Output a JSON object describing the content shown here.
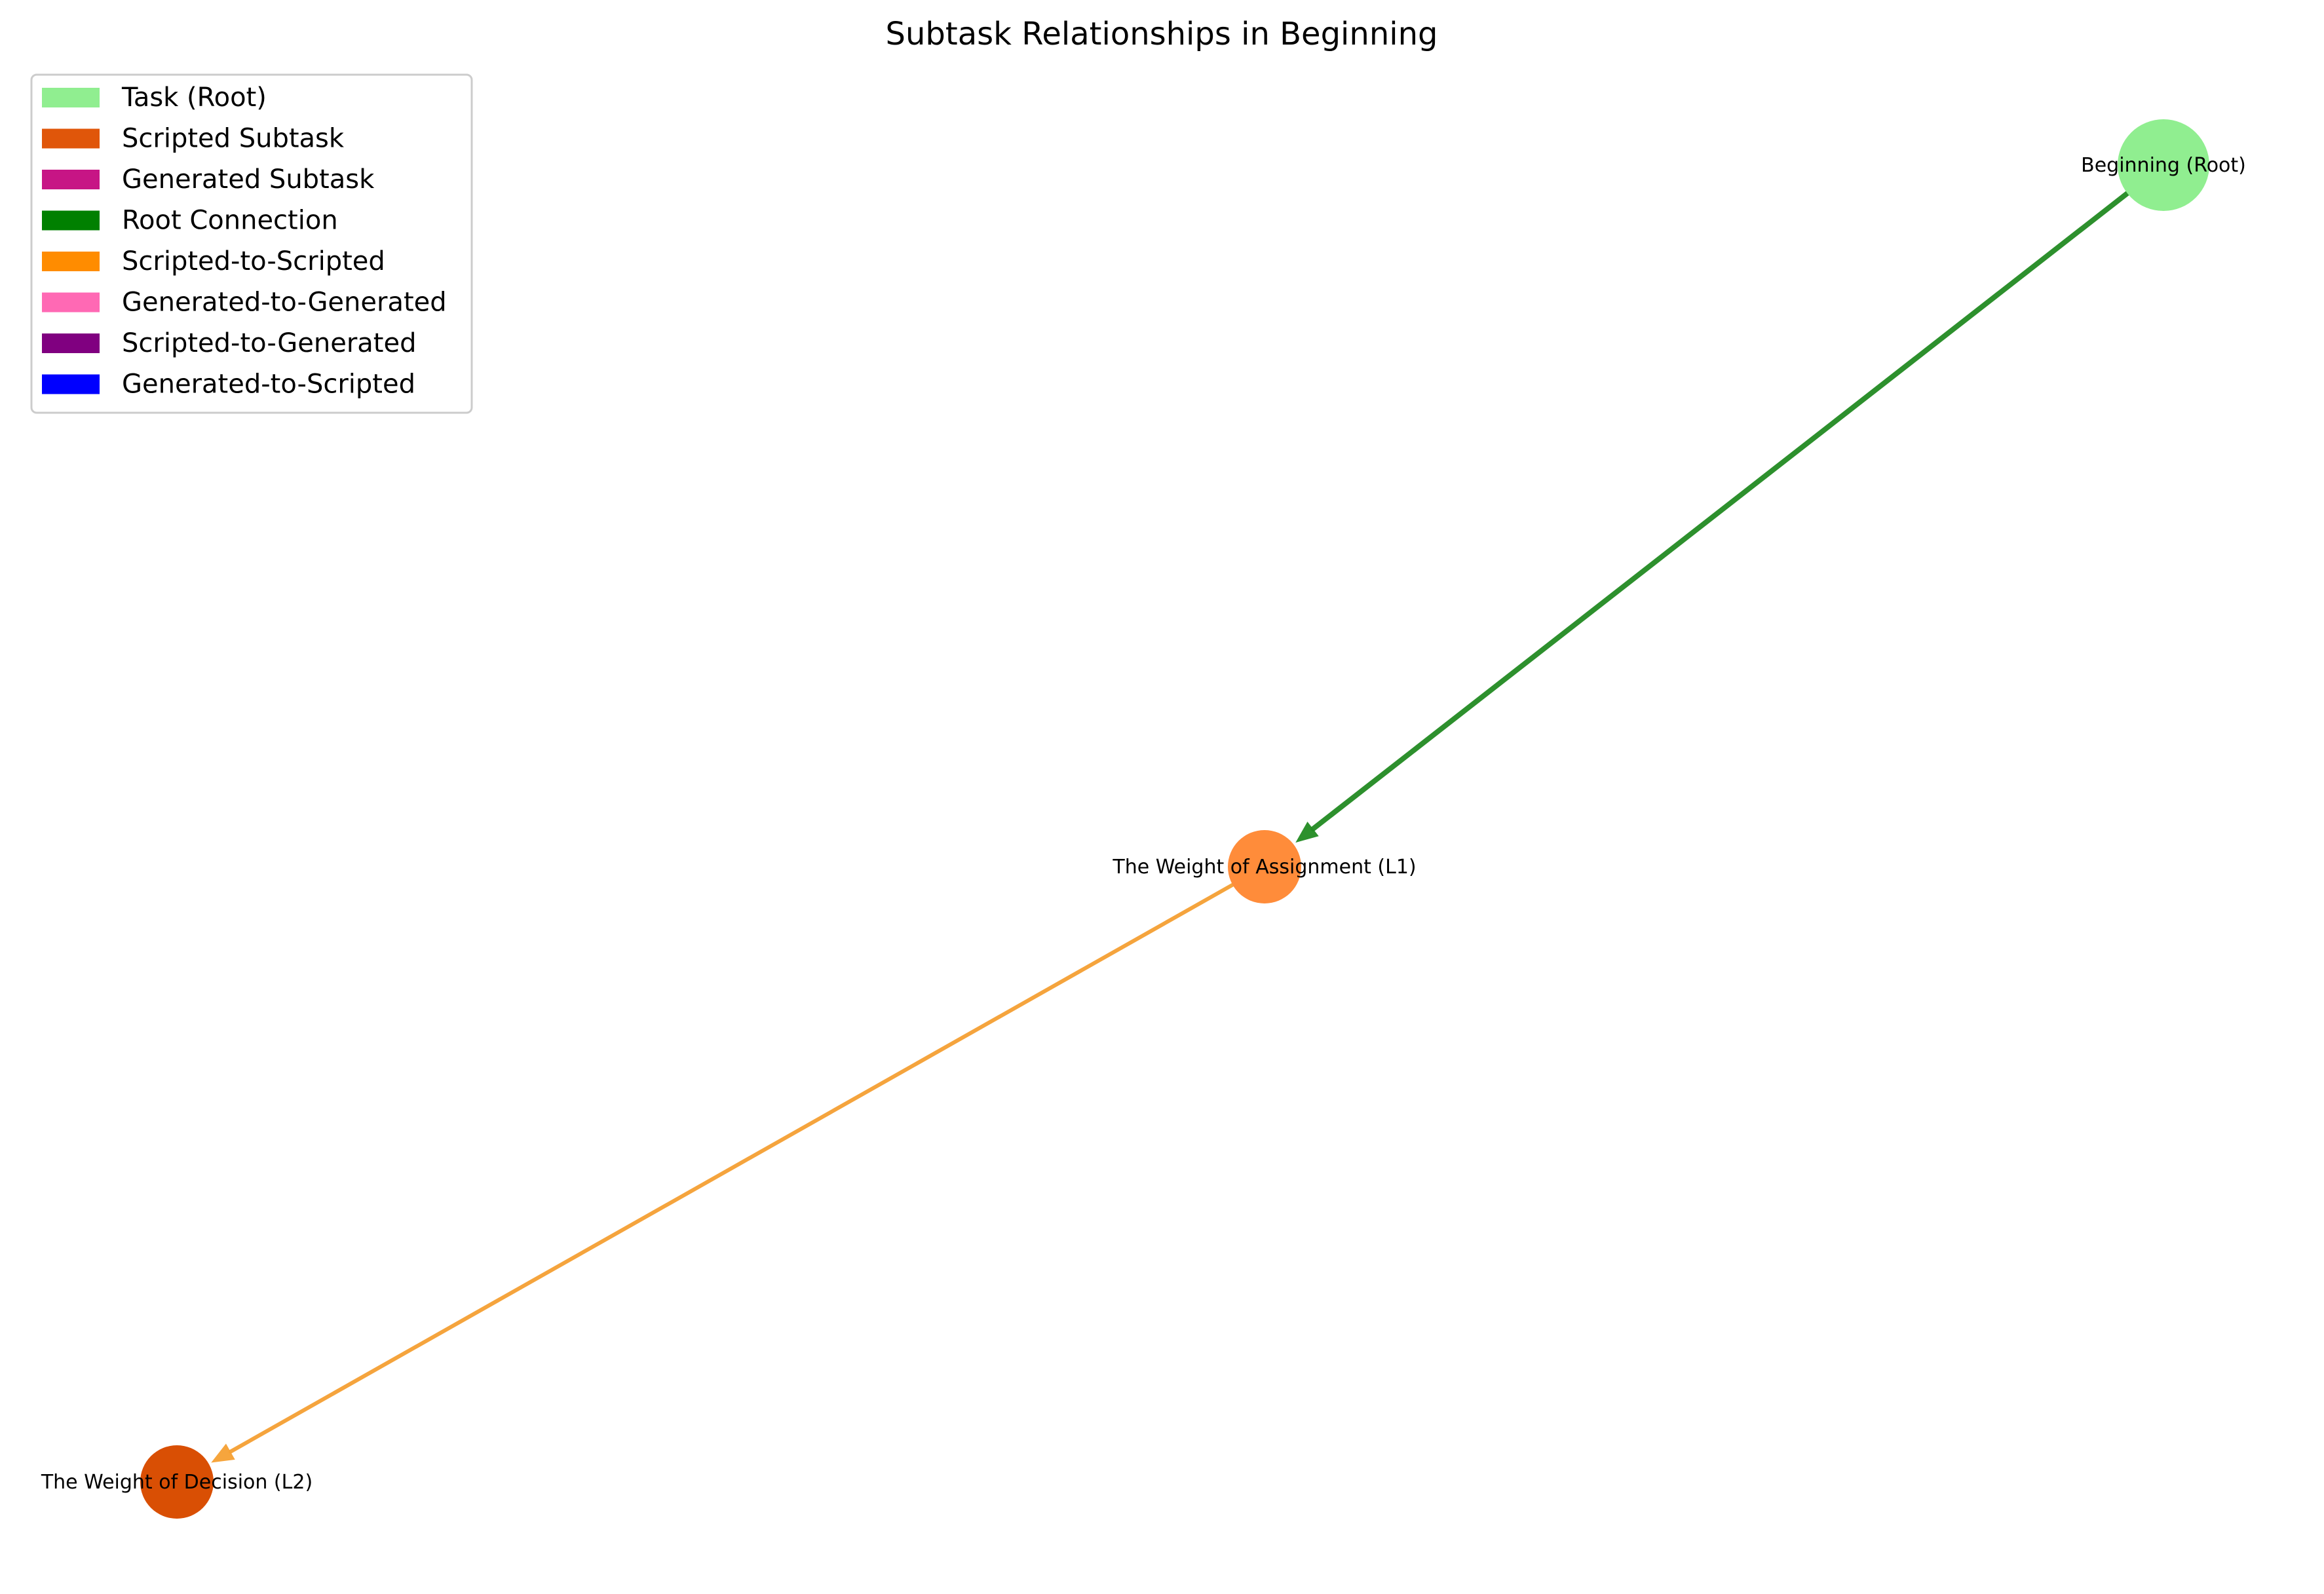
{
  "diagram": {
    "title": "Subtask Relationships in Beginning",
    "nodes": [
      {
        "id": "root",
        "label": "Beginning (Root)",
        "kind": "Task (Root)",
        "color": "#90ee90"
      },
      {
        "id": "l1",
        "label": "The Weight of Assignment (L1)",
        "kind": "Scripted Subtask",
        "color": "#ff8c3a"
      },
      {
        "id": "l2",
        "label": "The Weight of Decision (L2)",
        "kind": "Scripted Subtask",
        "color": "#d94f04"
      }
    ],
    "edges": [
      {
        "from": "root",
        "to": "l1",
        "kind": "Root Connection",
        "color": "#228b22"
      },
      {
        "from": "l1",
        "to": "l2",
        "kind": "Scripted-to-Scripted",
        "color": "#f5a033"
      }
    ],
    "legend": [
      {
        "label": "Task (Root)",
        "color": "#90ee90"
      },
      {
        "label": "Scripted Subtask",
        "color": "#e0560a"
      },
      {
        "label": "Generated Subtask",
        "color": "#c71585"
      },
      {
        "label": "Root Connection",
        "color": "#008000"
      },
      {
        "label": "Scripted-to-Scripted",
        "color": "#ff8c00"
      },
      {
        "label": "Generated-to-Generated",
        "color": "#ff69b4"
      },
      {
        "label": "Scripted-to-Generated",
        "color": "#800080"
      },
      {
        "label": "Generated-to-Scripted",
        "color": "#0000ff"
      }
    ]
  }
}
